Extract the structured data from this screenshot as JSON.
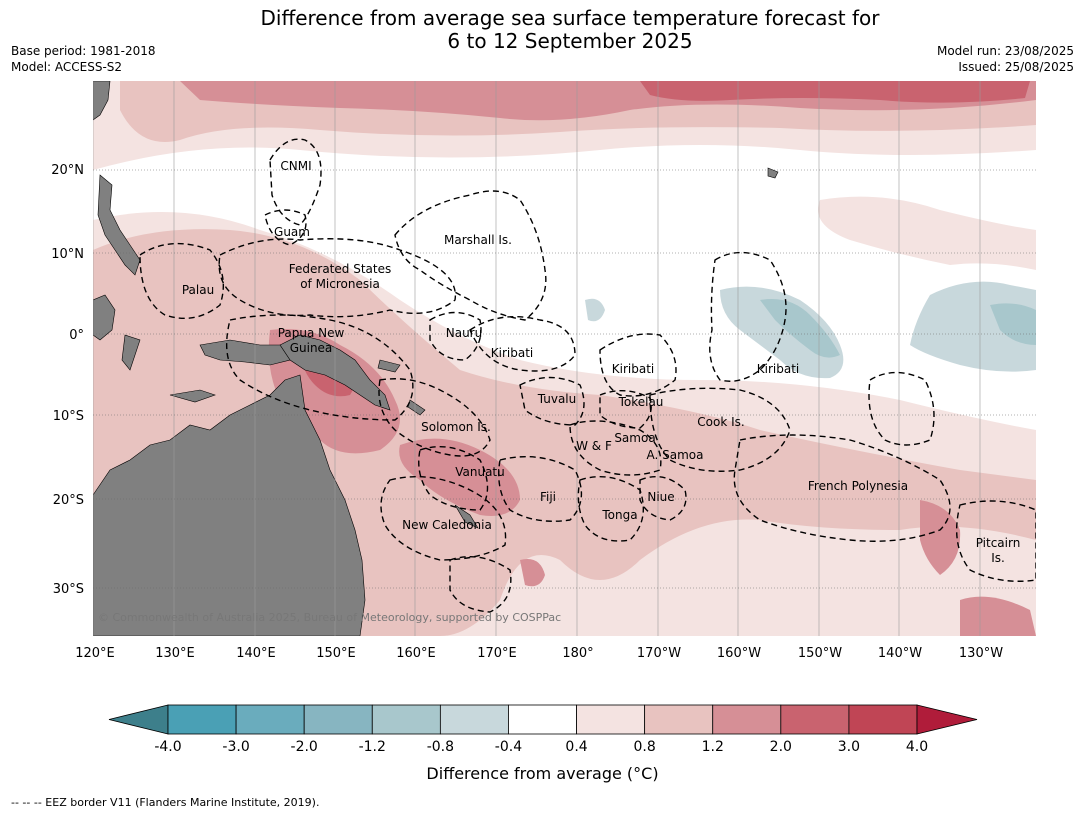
{
  "title_line1": "Difference from average sea surface temperature forecast for",
  "title_line2": "6 to 12 September 2025",
  "base_period": "Base period: 1981-2018",
  "model": "Model: ACCESS-S2",
  "model_run": "Model run: 23/08/2025",
  "issued": "Issued: 25/08/2025",
  "copyright": "© Commonwealth of Australia 2025, Bureau of Meteorology, supported by COSPPac",
  "footer": "--  --  -- EEZ border V11 (Flanders Marine Institute, 2019).",
  "lon_ticks": [
    "120°E",
    "130°E",
    "140°E",
    "150°E",
    "160°E",
    "170°E",
    "180°",
    "170°W",
    "160°W",
    "150°W",
    "140°W",
    "130°W"
  ],
  "lat_ticks": [
    "20°N",
    "10°N",
    "0°",
    "10°S",
    "20°S",
    "30°S"
  ],
  "labels": {
    "cnmi": "CNMI",
    "guam": "Guam",
    "marshall": "Marshall Is.",
    "fsm1": "Federated States",
    "fsm2": "of Micronesia",
    "palau": "Palau",
    "nauru": "Nauru",
    "png1": "Papua New",
    "png2": "Guinea",
    "kiribati_w": "Kiribati",
    "kiribati_c": "Kiribati",
    "kiribati_e": "Kiribati",
    "tuvalu": "Tuvalu",
    "tokelau": "Tokelau",
    "solomon": "Solomon Is.",
    "cook": "Cook Is.",
    "wf": "W & F",
    "samoa": "Samoa",
    "asamoa": "A. Samoa",
    "vanuatu": "Vanuatu",
    "fiji": "Fiji",
    "niue": "Niue",
    "tonga": "Tonga",
    "french_poly": "French Polynesia",
    "new_caledonia": "New Caledonia",
    "pitcairn1": "Pitcairn",
    "pitcairn2": "Is."
  },
  "colorbar": {
    "label": "Difference from average (°C)",
    "ticks": [
      "-4.0",
      "-3.0",
      "-2.0",
      "-1.2",
      "-0.8",
      "-0.4",
      "0.4",
      "0.8",
      "1.2",
      "2.0",
      "3.0",
      "4.0"
    ],
    "colors": [
      "#3d7f8b",
      "#4aa0b5",
      "#6aacbd",
      "#87b5c1",
      "#a8c7cc",
      "#c8d8dc",
      "#ffffff",
      "#f4e3e1",
      "#e8c3c0",
      "#d68f96",
      "#c9636f",
      "#c04555",
      "#b01c3a"
    ]
  },
  "colors": {
    "land": "#808080",
    "ocean": "#ffffff",
    "anomaly_light": "#f4e3e1",
    "anomaly_med": "#e8c3c0",
    "anomaly_strong": "#d68f96",
    "anomaly_vstrong": "#c9636f",
    "cool_light": "#c8d8dc",
    "cool_med": "#a8c7cc"
  }
}
